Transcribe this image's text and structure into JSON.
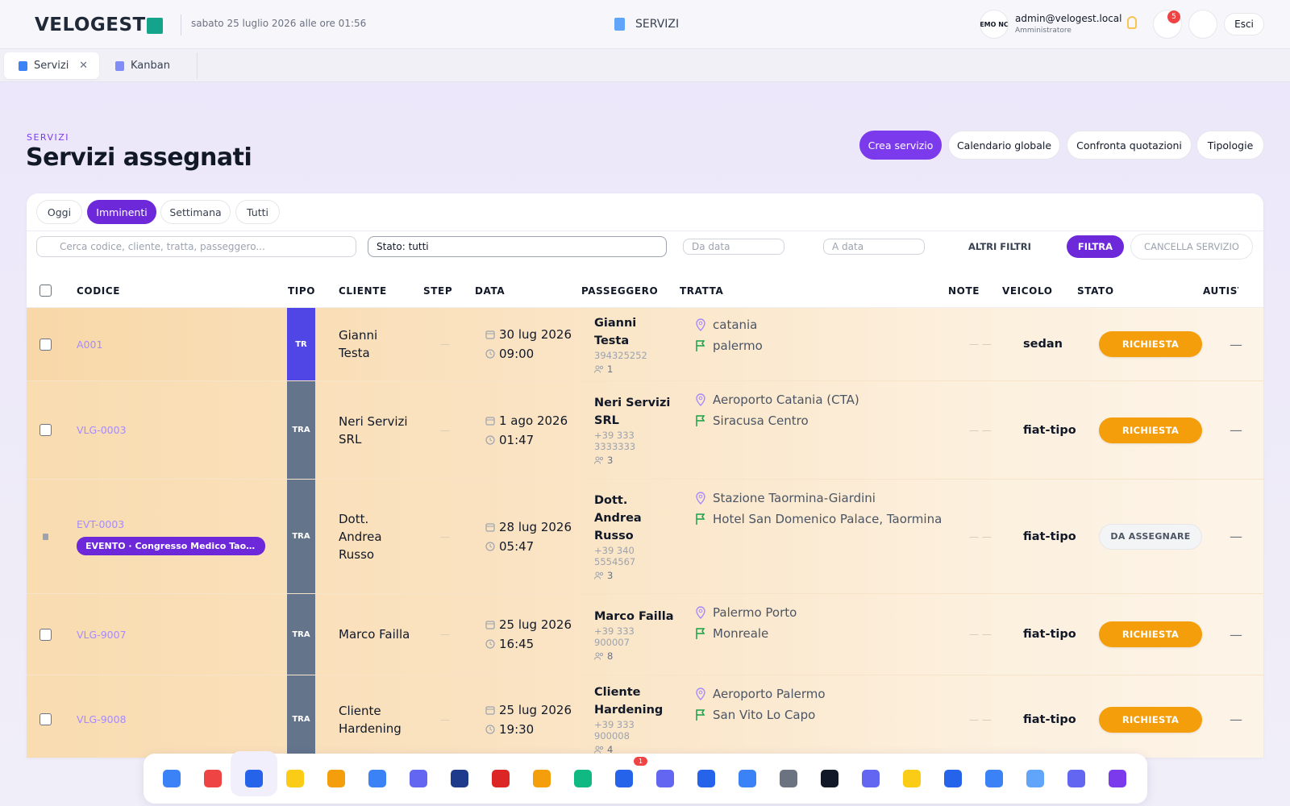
{
  "header": {
    "brand": "VELOGEST",
    "datetime": "sabato 25 luglio 2026 alle ore 01:56",
    "section": "SERVIZI",
    "logo_text": "EMO NC",
    "user_email": "admin@velogest.local",
    "user_role": "Amministratore",
    "notifications": 5,
    "logout": "Esci"
  },
  "tabs": [
    {
      "label": "Servizi",
      "active": true
    },
    {
      "label": "Kanban",
      "active": false
    }
  ],
  "page": {
    "eyebrow": "SERVIZI",
    "title": "Servizi assegnati",
    "actions": [
      "Crea servizio",
      "Calendario globale",
      "Confronta quotazioni",
      "Tipologie"
    ]
  },
  "filters": {
    "periods": [
      "Oggi",
      "Imminenti",
      "Settimana",
      "Tutti"
    ],
    "active_period": 1,
    "search": "Cerca codice, cliente, tratta, passeggero...",
    "status": "Stato: tutti",
    "date_from": "Da data",
    "date_to": "A data",
    "more": "ALTRI FILTRI",
    "apply": "FILTRA",
    "clear": "CANCELLA SERVIZIO"
  },
  "table": {
    "columns": [
      "CODICE",
      "TIPO",
      "CLIENTE",
      "STEP",
      "DATA",
      "PASSEGGERO",
      "TRATTA",
      "NOTE",
      "VEICOLO",
      "STATO",
      "AUTISTA"
    ],
    "rows": [
      {
        "code": "A001",
        "type": "TR",
        "type_color": "#4f46e5",
        "client": "Gianni Testa",
        "step": "—",
        "date": "30 lug 2026",
        "time": "09:00",
        "passenger": "Gianni Testa",
        "phone": "394325252",
        "pax": 1,
        "from": "catania",
        "to": "palermo",
        "note": "— —",
        "vehicle": "sedan",
        "status": "RICHIESTA",
        "status_style": "orange",
        "driver": "—"
      },
      {
        "code": "VLG-0003",
        "type": "TRA",
        "type_color": "#64748b",
        "client": "Neri Servizi SRL",
        "step": "—",
        "date": "1 ago 2026",
        "time": "01:47",
        "passenger": "Neri Servizi SRL",
        "phone": "+39 333 3333333",
        "pax": 3,
        "from": "Aeroporto Catania (CTA)",
        "to": "Siracusa Centro",
        "note": "— —",
        "vehicle": "fiat-tipo",
        "status": "RICHIESTA",
        "status_style": "orange",
        "driver": "—"
      },
      {
        "code": "EVT-0003",
        "event": "EVENTO · Congresso Medico Taormina",
        "type": "TRA",
        "type_color": "#64748b",
        "client": "Dott. Andrea Russo",
        "step": "—",
        "date": "28 lug 2026",
        "time": "05:47",
        "passenger": "Dott. Andrea Russo",
        "phone": "+39 340 5554567",
        "pax": 3,
        "from": "Stazione Taormina-Giardini",
        "to": "Hotel San Domenico Palace, Taormina",
        "note": "— —",
        "vehicle": "fiat-tipo",
        "status": "DA ASSEGNARE",
        "status_style": "gray",
        "driver": "—"
      },
      {
        "code": "VLG-9007",
        "type": "TRA",
        "type_color": "#64748b",
        "client": "Marco Failla",
        "step": "—",
        "date": "25 lug 2026",
        "time": "16:45",
        "passenger": "Marco Failla",
        "phone": "+39 333 900007",
        "pax": 8,
        "from": "Palermo Porto",
        "to": "Monreale",
        "note": "— —",
        "vehicle": "fiat-tipo",
        "status": "RICHIESTA",
        "status_style": "orange",
        "driver": "—"
      },
      {
        "code": "VLG-9008",
        "type": "TRA",
        "type_color": "#64748b",
        "client": "Cliente Hardening",
        "step": "—",
        "date": "25 lug 2026",
        "time": "19:30",
        "passenger": "Cliente Hardening",
        "phone": "+39 333 900008",
        "pax": 4,
        "from": "Aeroporto Palermo",
        "to": "San Vito Lo Capo",
        "note": "— —",
        "vehicle": "fiat-tipo",
        "status": "RICHIESTA",
        "status_style": "orange",
        "driver": "—"
      }
    ]
  },
  "dock": {
    "badge": 1
  }
}
